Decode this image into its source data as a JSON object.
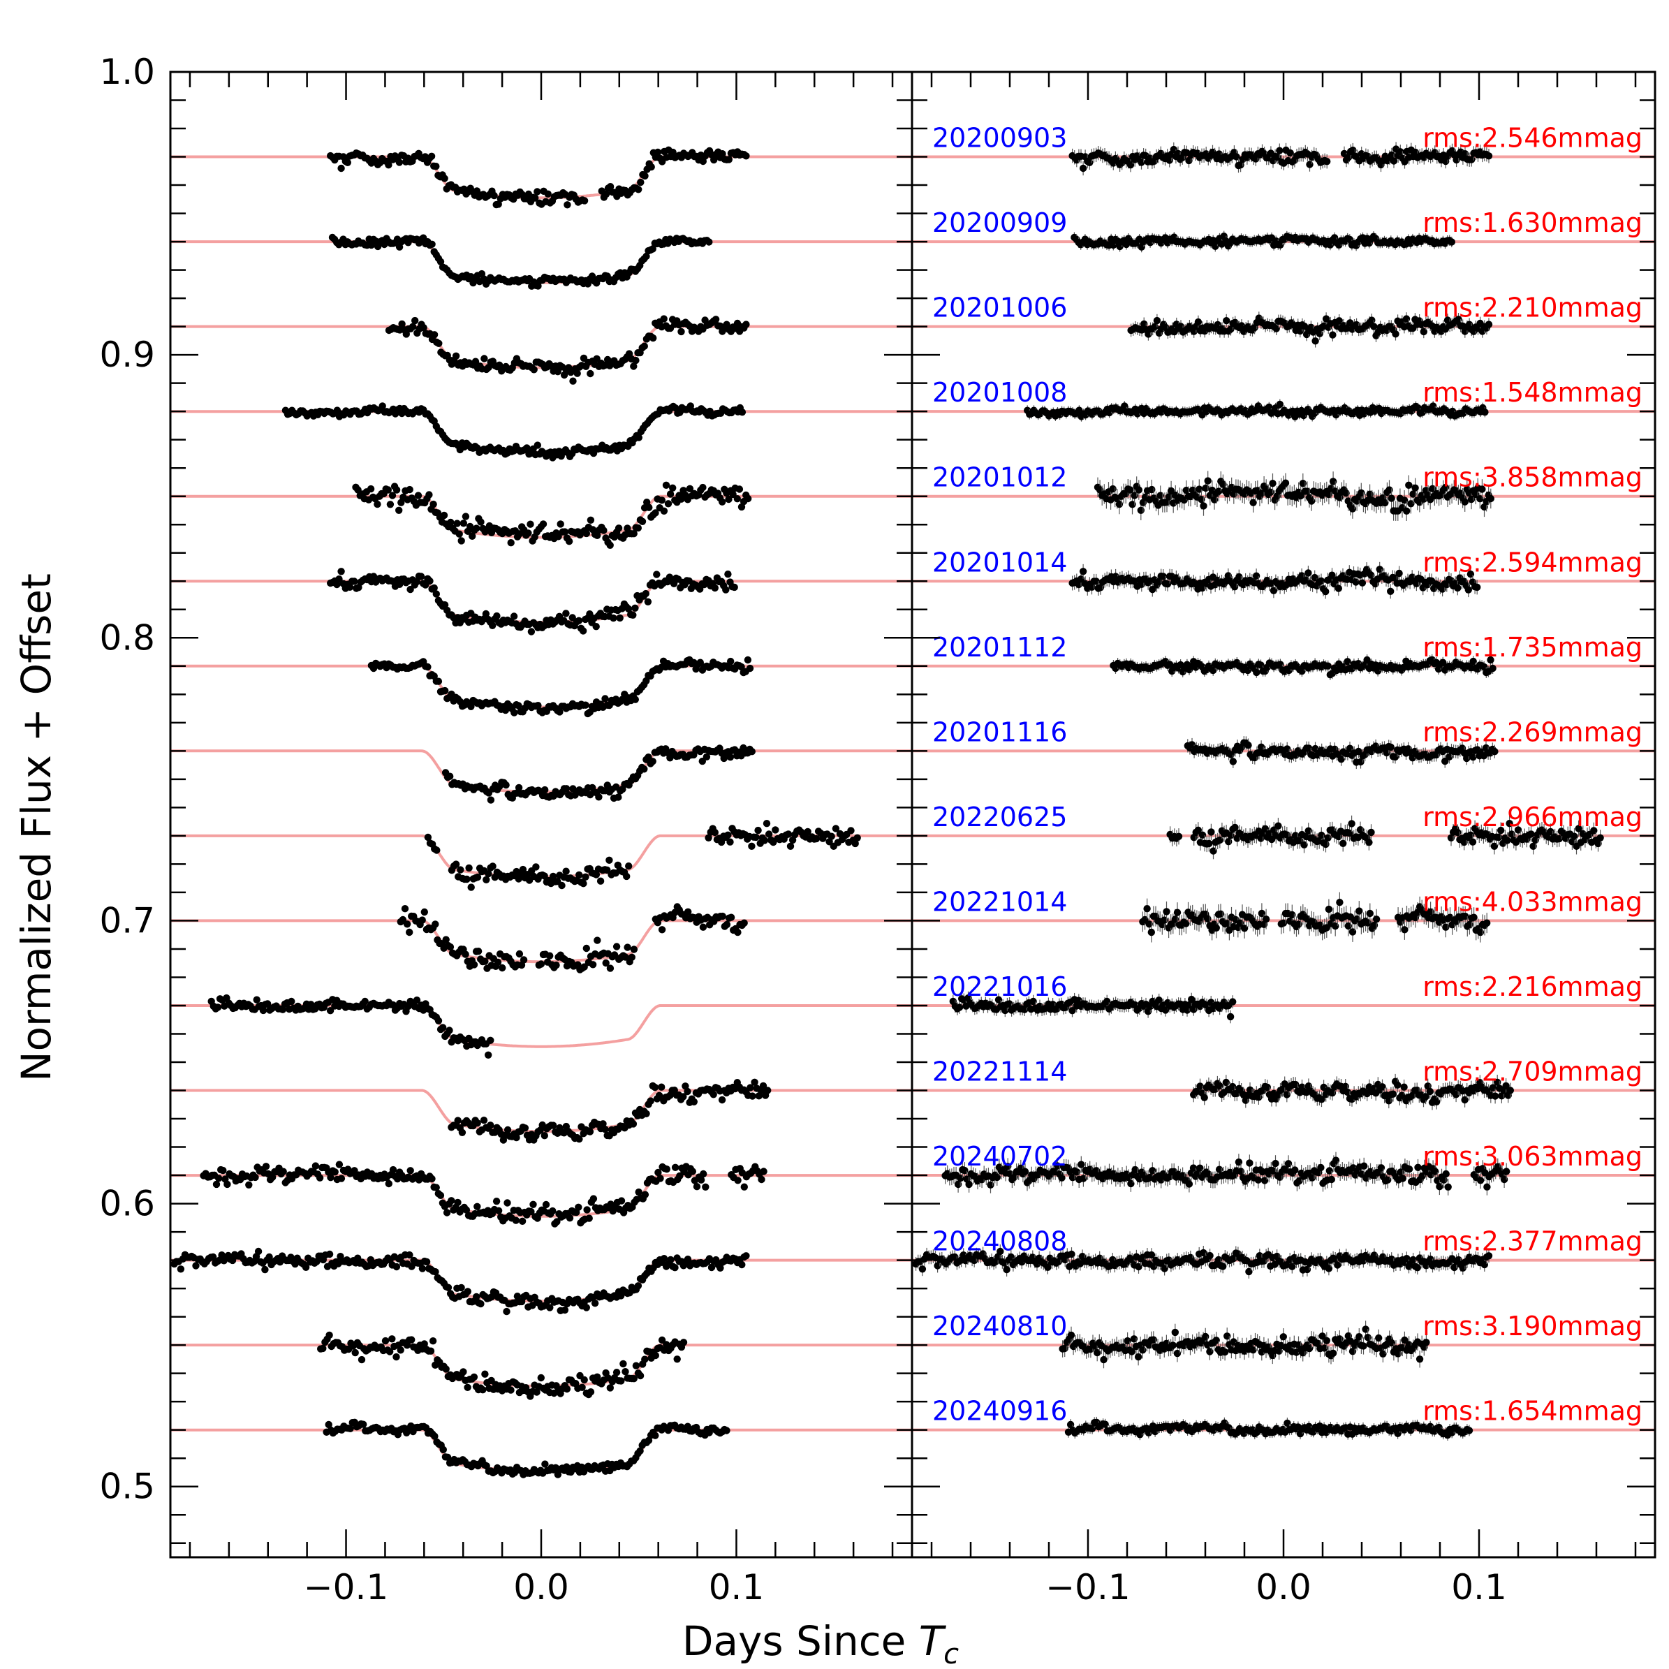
{
  "chart_data": {
    "type": "scatter",
    "title": "",
    "xlabel": "Days Since",
    "xlabel_symbol": "T",
    "xlabel_subscript": "c",
    "ylabel": "Normalized Flux + Offset",
    "xlim": [
      -0.19,
      0.19
    ],
    "ylim": [
      0.475,
      1.0
    ],
    "x_ticks": [
      -0.1,
      0.0,
      0.1
    ],
    "x_tick_labels": [
      "−0.1",
      "0.0",
      "0.1"
    ],
    "y_ticks": [
      0.5,
      0.6,
      0.7,
      0.8,
      0.9,
      1.0
    ],
    "y_tick_labels": [
      "0.5",
      "0.6",
      "0.7",
      "0.8",
      "0.9",
      "1.0"
    ],
    "transit_model": {
      "depth": 0.0145,
      "first_contact": -0.061,
      "second_contact": -0.044,
      "third_contact": 0.044,
      "fourth_contact": 0.061
    },
    "panels": [
      "Light curves with transit model",
      "Residuals"
    ],
    "colors": {
      "data": "#000000",
      "model": "#f4a0a0",
      "date": "#0000ff",
      "rms": "#ff0000"
    },
    "series": [
      {
        "date": "20200903",
        "rms": "rms:2.546mmag",
        "offset": 0.97,
        "x_start": -0.108,
        "x_end": 0.105,
        "gaps": [
          [
            0.023,
            0.03
          ]
        ],
        "scatter": 2.5
      },
      {
        "date": "20200909",
        "rms": "rms:1.630mmag",
        "offset": 0.94,
        "x_start": -0.107,
        "x_end": 0.086,
        "gaps": [],
        "scatter": 1.6
      },
      {
        "date": "20201006",
        "rms": "rms:2.210mmag",
        "offset": 0.91,
        "x_start": -0.078,
        "x_end": 0.105,
        "gaps": [],
        "scatter": 2.2
      },
      {
        "date": "20201008",
        "rms": "rms:1.548mmag",
        "offset": 0.88,
        "x_start": -0.131,
        "x_end": 0.103,
        "gaps": [],
        "scatter": 1.5
      },
      {
        "date": "20201012",
        "rms": "rms:3.858mmag",
        "offset": 0.85,
        "x_start": -0.095,
        "x_end": 0.106,
        "gaps": [],
        "scatter": 3.9
      },
      {
        "date": "20201014",
        "rms": "rms:2.594mmag",
        "offset": 0.82,
        "x_start": -0.108,
        "x_end": 0.099,
        "gaps": [],
        "scatter": 2.6
      },
      {
        "date": "20201112",
        "rms": "rms:1.735mmag",
        "offset": 0.79,
        "x_start": -0.087,
        "x_end": 0.107,
        "gaps": [],
        "scatter": 1.7
      },
      {
        "date": "20201116",
        "rms": "rms:2.269mmag",
        "offset": 0.76,
        "x_start": -0.049,
        "x_end": 0.108,
        "gaps": [],
        "scatter": 2.3
      },
      {
        "date": "20220625",
        "rms": "rms:2.966mmag",
        "offset": 0.73,
        "x_start": -0.058,
        "x_end": 0.162,
        "gaps": [
          [
            -0.053,
            -0.046
          ],
          [
            0.045,
            0.085
          ]
        ],
        "scatter": 3.0
      },
      {
        "date": "20221014",
        "rms": "rms:4.033mmag",
        "offset": 0.7,
        "x_start": -0.072,
        "x_end": 0.104,
        "gaps": [
          [
            -0.008,
            -0.002
          ],
          [
            0.048,
            0.058
          ]
        ],
        "scatter": 4.0
      },
      {
        "date": "20221016",
        "rms": "rms:2.216mmag",
        "offset": 0.67,
        "x_start": -0.169,
        "x_end": -0.026,
        "gaps": [],
        "scatter": 2.2
      },
      {
        "date": "20221114",
        "rms": "rms:2.709mmag",
        "offset": 0.64,
        "x_start": -0.046,
        "x_end": 0.116,
        "gaps": [],
        "scatter": 2.7
      },
      {
        "date": "20240702",
        "rms": "rms:3.063mmag",
        "offset": 0.61,
        "x_start": -0.173,
        "x_end": 0.114,
        "gaps": [
          [
            0.085,
            0.097
          ]
        ],
        "scatter": 3.1
      },
      {
        "date": "20240808",
        "rms": "rms:2.377mmag",
        "offset": 0.58,
        "x_start": -0.188,
        "x_end": 0.105,
        "gaps": [],
        "scatter": 2.4
      },
      {
        "date": "20240810",
        "rms": "rms:3.190mmag",
        "offset": 0.55,
        "x_start": -0.113,
        "x_end": 0.073,
        "gaps": [],
        "scatter": 3.2
      },
      {
        "date": "20240916",
        "rms": "rms:1.654mmag",
        "offset": 0.52,
        "x_start": -0.11,
        "x_end": 0.095,
        "gaps": [],
        "scatter": 1.7
      }
    ]
  }
}
